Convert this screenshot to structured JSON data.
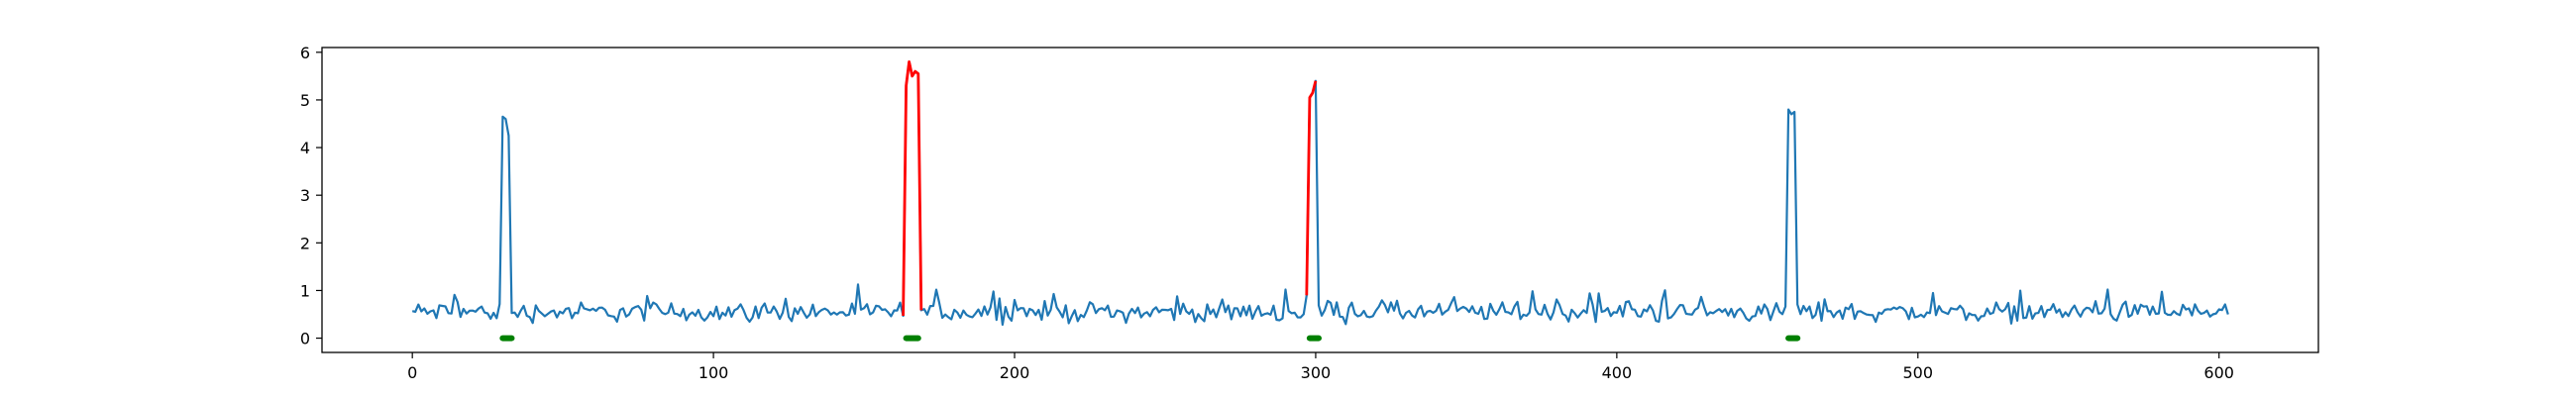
{
  "chart_data": {
    "type": "line",
    "title": "",
    "xlabel": "",
    "ylabel": "",
    "xlim": [
      -30,
      633
    ],
    "ylim": [
      -0.3,
      6.1
    ],
    "x_ticks": [
      0,
      100,
      200,
      300,
      400,
      500,
      600
    ],
    "y_ticks": [
      0,
      1,
      2,
      3,
      4,
      5,
      6
    ],
    "x_tick_labels": [
      "0",
      "100",
      "200",
      "300",
      "400",
      "500",
      "600"
    ],
    "y_tick_labels": [
      "0",
      "1",
      "2",
      "3",
      "4",
      "5",
      "6"
    ],
    "grid": false,
    "legend": "none",
    "x_range": [
      0,
      603
    ],
    "noise_baseline": 0.55,
    "noise_amplitude": 0.3,
    "spikes": [
      {
        "start": 30,
        "end": 32,
        "values": [
          4.65,
          4.6,
          4.25
        ]
      },
      {
        "start": 164,
        "end": 168,
        "values": [
          5.3,
          5.8,
          5.5,
          5.6,
          5.55
        ]
      },
      {
        "start": 298,
        "end": 300,
        "values": [
          5.05,
          5.15,
          5.4
        ]
      },
      {
        "start": 457,
        "end": 459,
        "values": [
          4.8,
          4.7,
          4.75
        ]
      }
    ],
    "highlight_segments": [
      {
        "start": 163,
        "end": 169,
        "color": "#ff0000"
      },
      {
        "start": 297,
        "end": 300,
        "color": "#ff0000"
      }
    ],
    "markers": [
      {
        "start": 30,
        "end": 33,
        "y": 0
      },
      {
        "start": 164,
        "end": 168,
        "y": 0
      },
      {
        "start": 298,
        "end": 301,
        "y": 0
      },
      {
        "start": 457,
        "end": 460,
        "y": 0
      }
    ],
    "colors": {
      "line": "#1f77b4",
      "highlight": "#ff0000",
      "marker": "#008000",
      "axes": "#000000"
    }
  }
}
